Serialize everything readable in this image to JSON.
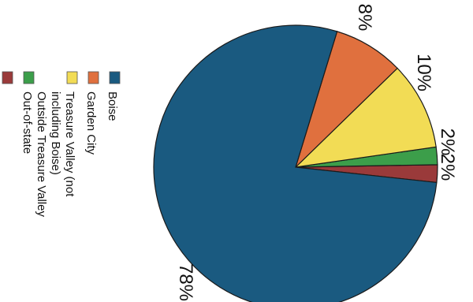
{
  "chart_data": {
    "type": "pie",
    "title": "",
    "orientation": "rotated 90 degrees clockwise",
    "legend_position": "left",
    "slices": [
      {
        "label": "Boise",
        "value": 78,
        "display": "78%",
        "color": "#1a5a80"
      },
      {
        "label": "Garden City",
        "value": 8,
        "display": "8%",
        "color": "#e0703e"
      },
      {
        "label": "Treasure Valley (not including Boise)",
        "value": 10,
        "display": "10%",
        "color": "#f2dc55"
      },
      {
        "label": "Outside Treasure Valley",
        "value": 2,
        "display": "2%",
        "color": "#3c9e4a"
      },
      {
        "label": "Out-of-state",
        "value": 2,
        "display": "2%",
        "color": "#9a3a3a"
      }
    ],
    "legend_lines": [
      [
        "Boise"
      ],
      [
        "Garden City"
      ],
      [
        "Treasure Valley (not",
        "including Boise)"
      ],
      [
        "Outside Treasure Valley"
      ],
      [
        "Out-of-state"
      ]
    ]
  }
}
